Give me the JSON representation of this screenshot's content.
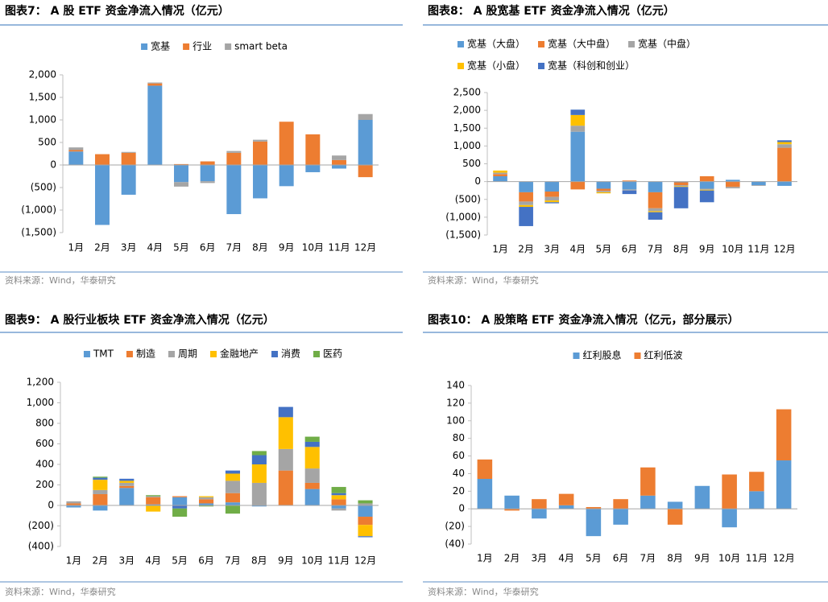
{
  "chart_data": [
    {
      "type": "bar",
      "stacked": true,
      "title": "图表7：  A 股 ETF 资金净流入情况（亿元）",
      "source": "资料来源：Wind，华泰研究",
      "categories": [
        "1月",
        "2月",
        "3月",
        "4月",
        "5月",
        "6月",
        "7月",
        "8月",
        "9月",
        "10月",
        "11月",
        "12月"
      ],
      "series": [
        {
          "name": "宽基",
          "color": "#5b9bd5",
          "values": [
            300,
            -1330,
            -660,
            1760,
            -380,
            -360,
            -1090,
            -740,
            -470,
            -160,
            -80,
            1000
          ]
        },
        {
          "name": "行业",
          "color": "#ed7d31",
          "values": [
            30,
            240,
            270,
            50,
            20,
            80,
            270,
            520,
            960,
            680,
            110,
            -270
          ]
        },
        {
          "name": "smart beta",
          "color": "#a5a5a5",
          "values": [
            60,
            0,
            20,
            20,
            -100,
            -40,
            40,
            40,
            0,
            0,
            100,
            130
          ]
        }
      ],
      "ylim": [
        -1500,
        2000
      ],
      "yticks": [
        {
          "value": -1500,
          "label": "(1,500)"
        },
        {
          "value": -1000,
          "label": "(1,000)"
        },
        {
          "value": -500,
          "label": "(500)"
        },
        0,
        500,
        {
          "value": 1000,
          "label": "1,000"
        },
        {
          "value": 1500,
          "label": "1,500"
        },
        {
          "value": 2000,
          "label": "2,000"
        }
      ],
      "legend": "top",
      "grid": false
    },
    {
      "type": "bar",
      "stacked": true,
      "title": "图表8：  A 股宽基 ETF 资金净流入情况（亿元）",
      "source": "资料来源：Wind，华泰研究",
      "categories": [
        "1月",
        "2月",
        "3月",
        "4月",
        "5月",
        "6月",
        "7月",
        "8月",
        "9月",
        "10月",
        "11月",
        "12月"
      ],
      "series": [
        {
          "name": "宽基（大盘）",
          "color": "#5b9bd5",
          "values": [
            150,
            -300,
            -280,
            1400,
            -200,
            -220,
            -300,
            -20,
            -200,
            50,
            -100,
            -120
          ]
        },
        {
          "name": "宽基（大中盘）",
          "color": "#ed7d31",
          "values": [
            60,
            -260,
            -150,
            -220,
            -60,
            30,
            -450,
            -80,
            150,
            -150,
            0,
            950
          ]
        },
        {
          "name": "宽基（中盘）",
          "color": "#a5a5a5",
          "values": [
            40,
            -100,
            -100,
            170,
            -40,
            -30,
            -80,
            -30,
            -30,
            -40,
            -20,
            100
          ]
        },
        {
          "name": "宽基（小盘）",
          "color": "#ffc000",
          "values": [
            60,
            -50,
            -50,
            300,
            -30,
            0,
            -30,
            -20,
            -20,
            0,
            0,
            60
          ]
        },
        {
          "name": "宽基（科创和创业）",
          "color": "#4472c4",
          "values": [
            0,
            -540,
            -30,
            150,
            0,
            -100,
            -210,
            -600,
            -330,
            0,
            0,
            50
          ]
        }
      ],
      "ylim": [
        -1500,
        2500
      ],
      "yticks": [
        {
          "value": -1500,
          "label": "(1,500)"
        },
        {
          "value": -1000,
          "label": "(1,000)"
        },
        {
          "value": -500,
          "label": "(500)"
        },
        0,
        500,
        {
          "value": 1000,
          "label": "1,000"
        },
        {
          "value": 1500,
          "label": "1,500"
        },
        {
          "value": 2000,
          "label": "2,000"
        },
        {
          "value": 2500,
          "label": "2,500"
        }
      ],
      "legend": "top",
      "grid": false
    },
    {
      "type": "bar",
      "stacked": true,
      "title": "图表9：  A 股行业板块 ETF 资金净流入情况（亿元）",
      "source": "资料来源：Wind，华泰研究",
      "categories": [
        "1月",
        "2月",
        "3月",
        "4月",
        "5月",
        "6月",
        "7月",
        "8月",
        "9月",
        "10月",
        "11月",
        "12月"
      ],
      "series": [
        {
          "name": "TMT",
          "color": "#5b9bd5",
          "values": [
            -20,
            -50,
            170,
            10,
            80,
            20,
            30,
            -10,
            0,
            160,
            -30,
            -110
          ]
        },
        {
          "name": "制造",
          "color": "#ed7d31",
          "values": [
            20,
            110,
            20,
            70,
            10,
            40,
            90,
            0,
            340,
            60,
            60,
            -80
          ]
        },
        {
          "name": "周期",
          "color": "#a5a5a5",
          "values": [
            20,
            40,
            30,
            10,
            0,
            20,
            120,
            220,
            210,
            140,
            -20,
            20
          ]
        },
        {
          "name": "金融地产",
          "color": "#ffc000",
          "values": [
            0,
            100,
            20,
            -60,
            0,
            10,
            70,
            180,
            310,
            210,
            40,
            -110
          ]
        },
        {
          "name": "消费",
          "color": "#4472c4",
          "values": [
            0,
            20,
            20,
            0,
            -30,
            0,
            30,
            90,
            100,
            50,
            20,
            -10
          ]
        },
        {
          "name": "医药",
          "color": "#70ad47",
          "values": [
            0,
            10,
            0,
            10,
            -80,
            -10,
            -80,
            40,
            0,
            50,
            60,
            30
          ]
        }
      ],
      "ylim": [
        -400,
        1200
      ],
      "yticks": [
        {
          "value": -400,
          "label": "(400)"
        },
        {
          "value": -200,
          "label": "(200)"
        },
        0,
        200,
        400,
        600,
        800,
        {
          "value": 1000,
          "label": "1,000"
        },
        {
          "value": 1200,
          "label": "1,200"
        }
      ],
      "legend": "top",
      "grid": false
    },
    {
      "type": "bar",
      "stacked": true,
      "title": "图表10：  A 股策略 ETF 资金净流入情况（亿元，部分展示）",
      "source": "资料来源：Wind，华泰研究",
      "categories": [
        "1月",
        "2月",
        "3月",
        "4月",
        "5月",
        "6月",
        "7月",
        "8月",
        "9月",
        "10月",
        "11月",
        "12月"
      ],
      "series": [
        {
          "name": "红利股息",
          "color": "#5b9bd5",
          "values": [
            34,
            15,
            -11,
            4,
            -31,
            -18,
            15,
            8,
            26,
            -21,
            20,
            55
          ]
        },
        {
          "name": "红利低波",
          "color": "#ed7d31",
          "values": [
            22,
            -2,
            11,
            13,
            2,
            11,
            32,
            -18,
            0,
            39,
            22,
            58
          ]
        }
      ],
      "ylim": [
        -40,
        140
      ],
      "yticks": [
        {
          "value": -40,
          "label": "(40)"
        },
        {
          "value": -20,
          "label": "(20)"
        },
        0,
        20,
        40,
        60,
        80,
        100,
        120,
        140
      ],
      "legend": "top",
      "grid": false
    }
  ]
}
